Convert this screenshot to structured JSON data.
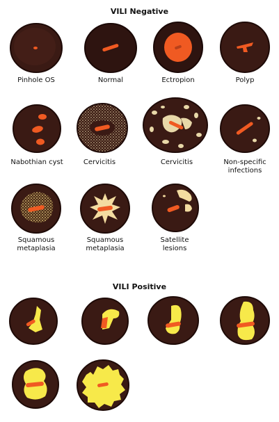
{
  "sections": {
    "negative": {
      "title": "VILI Negative"
    },
    "positive": {
      "title": "VILI Positive"
    }
  },
  "negative_items": [
    {
      "label": "Pinhole OS"
    },
    {
      "label": "Normal"
    },
    {
      "label": "Ectropion"
    },
    {
      "label": "Polyp"
    },
    {
      "label": "Nabothian cyst"
    },
    {
      "label": "Cervicitis"
    },
    {
      "label": "Cervicitis"
    },
    {
      "label": "Non-specific\ninfections"
    },
    {
      "label": "Squamous\nmetaplasia"
    },
    {
      "label": "Squamous\nmetaplasia"
    },
    {
      "label": "Satellite\nlesions"
    }
  ],
  "colors": {
    "cervix_dark": "#3a1a14",
    "cervix_rim": "#2a100c",
    "os_orange": "#f05a22",
    "iodine_yellow": "#f7e94a",
    "speckle_tan": "#e8d8a8"
  }
}
